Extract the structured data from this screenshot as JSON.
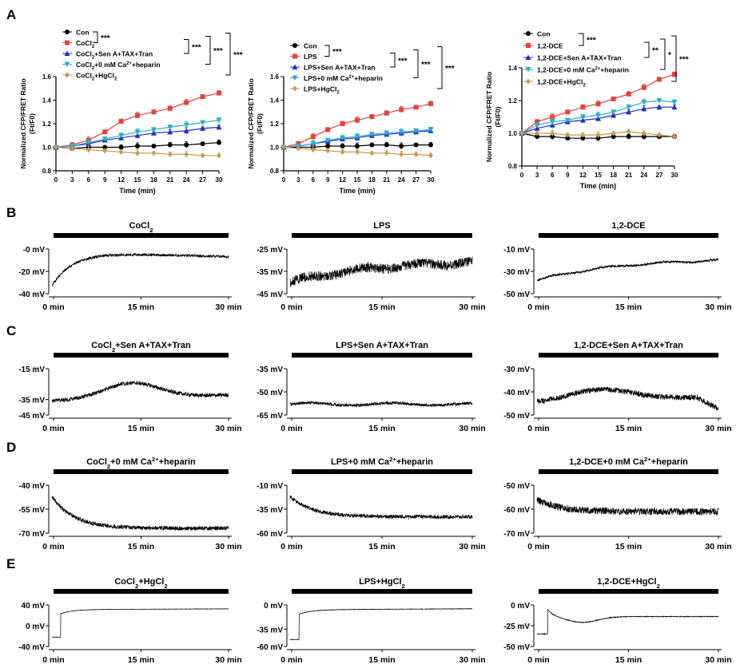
{
  "figure": {
    "panel_labels": [
      "A",
      "B",
      "C",
      "D",
      "E"
    ],
    "colors": {
      "con": "#000000",
      "treat": "#e8403a",
      "sen": "#1f2ec9",
      "ca": "#2bb0c2",
      "hg": "#c89a52",
      "axis": "#000000",
      "trace": "#000000"
    }
  },
  "chart_data": [
    {
      "id": "A1",
      "type": "line",
      "panel": "A",
      "xlabel": "Time (min)",
      "ylabel_lines": [
        "Normalized CFP/FRET Ratio",
        "(Ft/F0)"
      ],
      "x": [
        0,
        3,
        6,
        9,
        12,
        15,
        18,
        21,
        24,
        27,
        30
      ],
      "xticks": [
        "0",
        "3",
        "6",
        "9",
        "12",
        "15",
        "18",
        "21",
        "24",
        "27",
        "30"
      ],
      "ylim": [
        0.8,
        1.6
      ],
      "yticks": [
        "0.8",
        "1.0",
        "1.2",
        "1.4",
        "1.6"
      ],
      "series": [
        {
          "name": "Con",
          "marker": "circle",
          "color": "#000000",
          "values": [
            1.0,
            0.99,
            1.0,
            1.0,
            1.0,
            1.01,
            1.01,
            1.02,
            1.02,
            1.03,
            1.04
          ]
        },
        {
          "name": "CoCl2",
          "label_main": "CoCl",
          "label_sub": "2",
          "marker": "square",
          "color": "#e8403a",
          "values": [
            1.0,
            1.02,
            1.06,
            1.13,
            1.22,
            1.27,
            1.3,
            1.33,
            1.38,
            1.43,
            1.46
          ]
        },
        {
          "name": "CoCl2+Sen A+TAX+Tran",
          "label_main": "CoCl",
          "label_sub": "2",
          "label_rest": "+Sen A+TAX+Tran",
          "marker": "triangle",
          "color": "#1f2ec9",
          "values": [
            1.0,
            1.01,
            1.03,
            1.06,
            1.08,
            1.1,
            1.12,
            1.13,
            1.14,
            1.16,
            1.17
          ]
        },
        {
          "name": "CoCl2+0 mM Ca2++heparin",
          "label_main": "CoCl",
          "label_sub": "2",
          "label_rest": "+0 mM Ca",
          "label_sup": "2+",
          "label_tail": "+heparin",
          "marker": "triangle-down",
          "color": "#2bb0c2",
          "values": [
            1.0,
            1.01,
            1.04,
            1.07,
            1.1,
            1.13,
            1.15,
            1.17,
            1.19,
            1.21,
            1.23
          ]
        },
        {
          "name": "CoCl2+HgCl2",
          "label_main": "CoCl",
          "label_sub": "2",
          "label_rest": "+HgCl",
          "label_sub2": "2",
          "marker": "diamond",
          "color": "#c89a52",
          "values": [
            1.0,
            0.99,
            0.98,
            0.97,
            0.96,
            0.95,
            0.95,
            0.94,
            0.94,
            0.93,
            0.93
          ]
        }
      ],
      "significance": [
        "***",
        "***",
        "***",
        "***"
      ]
    },
    {
      "id": "A2",
      "type": "line",
      "panel": "A",
      "xlabel": "Time (min)",
      "ylabel_lines": [
        "Normalized CFP/FRET Ratio",
        "(Ft/F0)"
      ],
      "x": [
        0,
        3,
        6,
        9,
        12,
        15,
        18,
        21,
        24,
        27,
        30
      ],
      "xticks": [
        "0",
        "3",
        "6",
        "9",
        "12",
        "15",
        "18",
        "21",
        "24",
        "27",
        "30"
      ],
      "ylim": [
        0.8,
        1.6
      ],
      "yticks": [
        "0.8",
        "1.0",
        "1.2",
        "1.4",
        "1.6"
      ],
      "series": [
        {
          "name": "Con",
          "marker": "circle",
          "color": "#000000",
          "values": [
            1.0,
            1.0,
            1.0,
            1.01,
            1.01,
            1.01,
            1.02,
            1.02,
            1.01,
            1.02,
            1.02
          ]
        },
        {
          "name": "LPS",
          "marker": "square",
          "color": "#e8403a",
          "values": [
            1.0,
            1.03,
            1.09,
            1.15,
            1.2,
            1.23,
            1.26,
            1.29,
            1.32,
            1.34,
            1.37
          ]
        },
        {
          "name": "LPS+Sen A+TAX+Tran",
          "marker": "triangle",
          "color": "#1f2ec9",
          "values": [
            1.0,
            1.01,
            1.03,
            1.05,
            1.07,
            1.08,
            1.1,
            1.11,
            1.12,
            1.13,
            1.14
          ]
        },
        {
          "name": "LPS+0 mM Ca2++heparin",
          "label_main": "LPS+0 mM Ca",
          "label_sup": "2+",
          "label_tail": "+heparin",
          "marker": "triangle-down",
          "color": "#2bb0c2",
          "values": [
            1.0,
            1.01,
            1.03,
            1.06,
            1.08,
            1.09,
            1.11,
            1.12,
            1.13,
            1.14,
            1.15
          ]
        },
        {
          "name": "LPS+HgCl2",
          "label_main": "LPS+HgCl",
          "label_sub": "2",
          "marker": "diamond",
          "color": "#c89a52",
          "values": [
            1.0,
            0.99,
            0.98,
            0.97,
            0.96,
            0.96,
            0.95,
            0.95,
            0.94,
            0.94,
            0.93
          ]
        }
      ],
      "significance": [
        "***",
        "***",
        "***",
        "***"
      ]
    },
    {
      "id": "A3",
      "type": "line",
      "panel": "A",
      "xlabel": "Time (min)",
      "ylabel_lines": [
        "Normalized CFP/FRET Ratio",
        "(Ft/F0)"
      ],
      "x": [
        0,
        3,
        6,
        9,
        12,
        15,
        18,
        21,
        24,
        27,
        30
      ],
      "xticks": [
        "0",
        "3",
        "6",
        "9",
        "12",
        "15",
        "18",
        "21",
        "24",
        "27",
        "30"
      ],
      "ylim": [
        0.8,
        1.4
      ],
      "yticks": [
        "0.8",
        "1.0",
        "1.2",
        "1.4"
      ],
      "series": [
        {
          "name": "Con",
          "marker": "circle",
          "color": "#000000",
          "values": [
            1.0,
            0.98,
            0.98,
            0.97,
            0.97,
            0.97,
            0.98,
            0.98,
            0.98,
            0.98,
            0.98
          ]
        },
        {
          "name": "1,2-DCE",
          "marker": "square",
          "color": "#e8403a",
          "values": [
            1.0,
            1.07,
            1.1,
            1.13,
            1.16,
            1.18,
            1.21,
            1.24,
            1.28,
            1.33,
            1.36
          ]
        },
        {
          "name": "1,2-DCE+Sen A+TAX+Tran",
          "marker": "triangle",
          "color": "#1f2ec9",
          "values": [
            1.0,
            1.03,
            1.05,
            1.07,
            1.08,
            1.09,
            1.11,
            1.13,
            1.15,
            1.16,
            1.16
          ]
        },
        {
          "name": "1,2-DCE+0 mM Ca2++heparin",
          "label_main": "1,2-DCE+0 mM Ca",
          "label_sup": "2+",
          "label_tail": "+heparin",
          "marker": "triangle-down",
          "color": "#2bb0c2",
          "values": [
            1.0,
            1.05,
            1.07,
            1.08,
            1.1,
            1.11,
            1.13,
            1.16,
            1.19,
            1.2,
            1.19
          ]
        },
        {
          "name": "1,2-DCE+HgCl2",
          "label_main": "1,2-DCE+HgCl",
          "label_sub": "2",
          "marker": "diamond",
          "color": "#c89a52",
          "values": [
            1.0,
            1.0,
            1.0,
            0.99,
            0.99,
            0.99,
            1.0,
            1.01,
            1.0,
            0.99,
            0.98
          ]
        }
      ],
      "significance": [
        "***",
        "**",
        "*",
        "***"
      ]
    },
    {
      "id": "B",
      "type": "trace",
      "panel": "B",
      "xlabel_ticks": [
        "0 min",
        "15 min",
        "30 min"
      ],
      "plots": [
        {
          "title_main": "CoCl",
          "title_sub": "2",
          "yticks": [
            "-0 mV",
            "-20 mV",
            "-40 mV"
          ],
          "ylim": [
            -40,
            0
          ],
          "start": -33,
          "plateau": -8,
          "noise": 1.2,
          "shape": "rise_hump"
        },
        {
          "title_main": "LPS",
          "yticks": [
            "-25 mV",
            "-35 mV",
            "-45 mV"
          ],
          "ylim": [
            -45,
            -25
          ],
          "start": -40,
          "plateau": -30,
          "noise": 2.2,
          "shape": "slow_rise"
        },
        {
          "title_main": "1,2-DCE",
          "yticks": [
            "-10 mV",
            "-30 mV",
            "-50 mV"
          ],
          "ylim": [
            -50,
            -10
          ],
          "start": -38,
          "plateau": -18,
          "noise": 1.0,
          "shape": "slow_rise"
        }
      ]
    },
    {
      "id": "C",
      "type": "trace",
      "panel": "C",
      "xlabel_ticks": [
        "0 min",
        "15 min",
        "30 min"
      ],
      "plots": [
        {
          "title_main": "CoCl",
          "title_sub": "2",
          "title_rest": "+Sen A+TAX+Tran",
          "yticks": [
            "-15 mV",
            "-35 mV",
            "-45 mV"
          ],
          "ylim": [
            -45,
            -15
          ],
          "start": -36,
          "plateau": -32,
          "noise": 1.3,
          "shape": "mid_hump"
        },
        {
          "title_main": "LPS+Sen A+TAX+Tran",
          "yticks": [
            "-35 mV",
            "-50 mV",
            "-65 mV"
          ],
          "ylim": [
            -65,
            -35
          ],
          "start": -58,
          "plateau": -58,
          "noise": 1.0,
          "shape": "flat"
        },
        {
          "title_main": "1,2-DCE+Sen A+TAX+Tran",
          "yticks": [
            "-30 mV",
            "-40 mV",
            "-50 mV"
          ],
          "ylim": [
            -50,
            -30
          ],
          "start": -45,
          "plateau": -48,
          "noise": 1.2,
          "shape": "mid_hump_drop"
        }
      ]
    },
    {
      "id": "D",
      "type": "trace",
      "panel": "D",
      "xlabel_ticks": [
        "0 min",
        "15 min",
        "30 min"
      ],
      "plots": [
        {
          "title_main": "CoCl",
          "title_sub": "2",
          "title_rest": "+0 mM Ca",
          "title_sup": "2+",
          "title_tail": "+heparin",
          "yticks": [
            "-40 mV",
            "-55 mV",
            "-70 mV"
          ],
          "ylim": [
            -70,
            -40
          ],
          "start": -47,
          "plateau": -67,
          "noise": 1.3,
          "shape": "decay"
        },
        {
          "title_main": "LPS+0 mM Ca",
          "title_sup": "2+",
          "title_tail": "+heparin",
          "yticks": [
            "-10 mV",
            "-35 mV",
            "-60 mV"
          ],
          "ylim": [
            -60,
            -10
          ],
          "start": -22,
          "plateau": -43,
          "noise": 2.0,
          "shape": "decay"
        },
        {
          "title_main": "1,2-DCE+0 mM Ca",
          "title_sup": "2+",
          "title_tail": "+heparin",
          "yticks": [
            "-50 mV",
            "-60 mV",
            "-70 mV"
          ],
          "ylim": [
            -70,
            -50
          ],
          "start": -56,
          "plateau": -61,
          "noise": 1.5,
          "shape": "decay"
        }
      ]
    },
    {
      "id": "E",
      "type": "trace",
      "panel": "E",
      "xlabel_ticks": [
        "0 min",
        "15 min",
        "30 min"
      ],
      "plots": [
        {
          "title_main": "CoCl",
          "title_sub": "2",
          "title_rest": "+HgCl",
          "title_sub2": "2",
          "yticks": [
            "40 mV",
            "0 mV",
            "-40 mV"
          ],
          "ylim": [
            -40,
            40
          ],
          "start": -22,
          "plateau": 31,
          "noise": 0.3,
          "shape": "step"
        },
        {
          "title_main": "LPS+HgCl",
          "title_sub": "2",
          "yticks": [
            "0 mV",
            "-35 mV",
            "-60 mV"
          ],
          "ylim": [
            -60,
            0
          ],
          "start": -50,
          "plateau": -7,
          "noise": 0.3,
          "shape": "step"
        },
        {
          "title_main": "1,2-DCE+HgCl",
          "title_sub": "2",
          "yticks": [
            "0 mV",
            "-25 mV",
            "-50 mV"
          ],
          "ylim": [
            -50,
            0
          ],
          "start": -35,
          "plateau": -14,
          "noise": 0.4,
          "shape": "step_overshoot"
        }
      ]
    }
  ]
}
